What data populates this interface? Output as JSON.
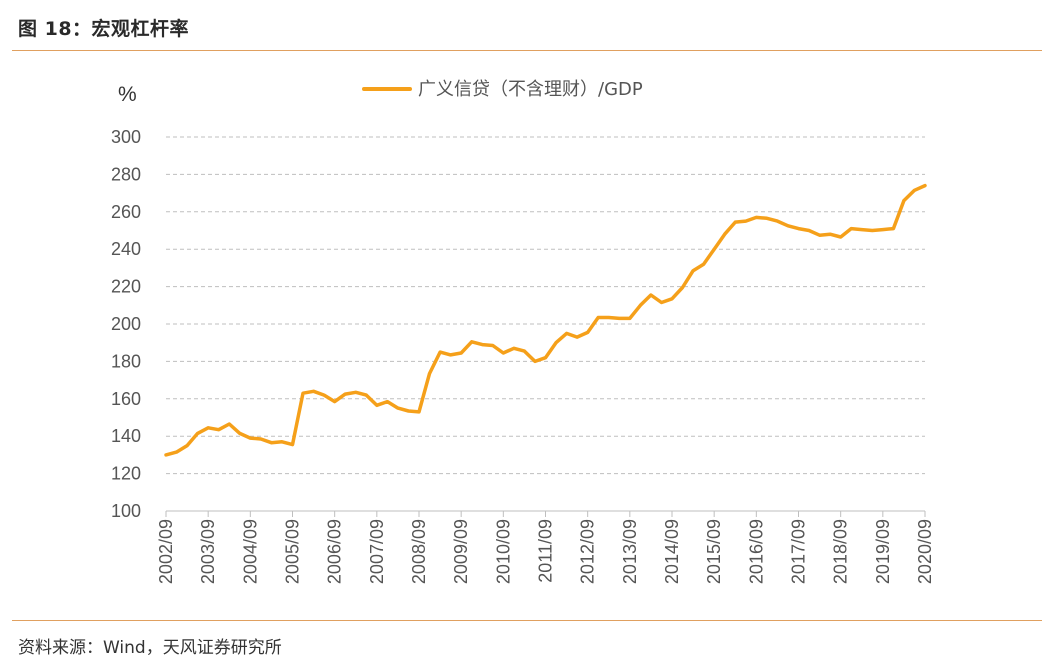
{
  "header": {
    "title": "图 18：宏观杠杆率"
  },
  "footer": {
    "source": "资料来源：Wind，天风证券研究所"
  },
  "chart_data": {
    "type": "line",
    "title": "",
    "ylabel": "%",
    "xlabel": "",
    "ylim": [
      100,
      300
    ],
    "yticks": [
      100,
      120,
      140,
      160,
      180,
      200,
      220,
      240,
      260,
      280,
      300
    ],
    "x_tick_labels": [
      "2002/09",
      "2003/09",
      "2004/09",
      "2005/09",
      "2006/09",
      "2007/09",
      "2008/09",
      "2009/09",
      "2010/09",
      "2011/09",
      "2012/09",
      "2013/09",
      "2014/09",
      "2015/09",
      "2016/09",
      "2017/09",
      "2018/09",
      "2019/09",
      "2020/09"
    ],
    "grid": "horizontal-dashed",
    "legend_position": "top-center",
    "colors": {
      "series": "#F5A01A",
      "grid": "#bfbfbf",
      "axis": "#bfbfbf"
    },
    "series": [
      {
        "name": "广义信贷（不含理财）/GDP",
        "x": [
          "2002/09",
          "2002/12",
          "2003/03",
          "2003/06",
          "2003/09",
          "2003/12",
          "2004/03",
          "2004/06",
          "2004/09",
          "2004/12",
          "2005/03",
          "2005/06",
          "2005/09",
          "2005/12",
          "2006/03",
          "2006/06",
          "2006/09",
          "2006/12",
          "2007/03",
          "2007/06",
          "2007/09",
          "2007/12",
          "2008/03",
          "2008/06",
          "2008/09",
          "2008/12",
          "2009/03",
          "2009/06",
          "2009/09",
          "2009/12",
          "2010/03",
          "2010/06",
          "2010/09",
          "2010/12",
          "2011/03",
          "2011/06",
          "2011/09",
          "2011/12",
          "2012/03",
          "2012/06",
          "2012/09",
          "2012/12",
          "2013/03",
          "2013/06",
          "2013/09",
          "2013/12",
          "2014/03",
          "2014/06",
          "2014/09",
          "2014/12",
          "2015/03",
          "2015/06",
          "2015/09",
          "2015/12",
          "2016/03",
          "2016/06",
          "2016/09",
          "2016/12",
          "2017/03",
          "2017/06",
          "2017/09",
          "2017/12",
          "2018/03",
          "2018/06",
          "2018/09",
          "2018/12",
          "2019/03",
          "2019/06",
          "2019/09",
          "2019/12",
          "2020/03",
          "2020/06",
          "2020/09"
        ],
        "values": [
          130,
          131.5,
          135,
          141.5,
          144.5,
          143.5,
          146.5,
          141.5,
          139,
          138.5,
          136.5,
          137,
          135.5,
          163,
          164,
          162,
          158.5,
          162.5,
          163.5,
          162,
          156.5,
          158.5,
          155,
          153.5,
          153,
          173.5,
          185,
          183.5,
          184.5,
          190.5,
          189,
          188.5,
          184.5,
          187,
          185.5,
          180,
          182,
          190,
          195,
          193,
          195.5,
          203.5,
          203.5,
          203,
          203,
          210,
          215.5,
          211.5,
          213.5,
          219.5,
          228.5,
          232,
          240,
          248,
          254.5,
          255,
          257,
          256.5,
          255,
          252.5,
          251,
          250,
          247.5,
          248,
          246.5,
          251,
          250.5,
          250,
          250.5,
          251,
          266,
          271.5,
          274
        ]
      }
    ]
  }
}
